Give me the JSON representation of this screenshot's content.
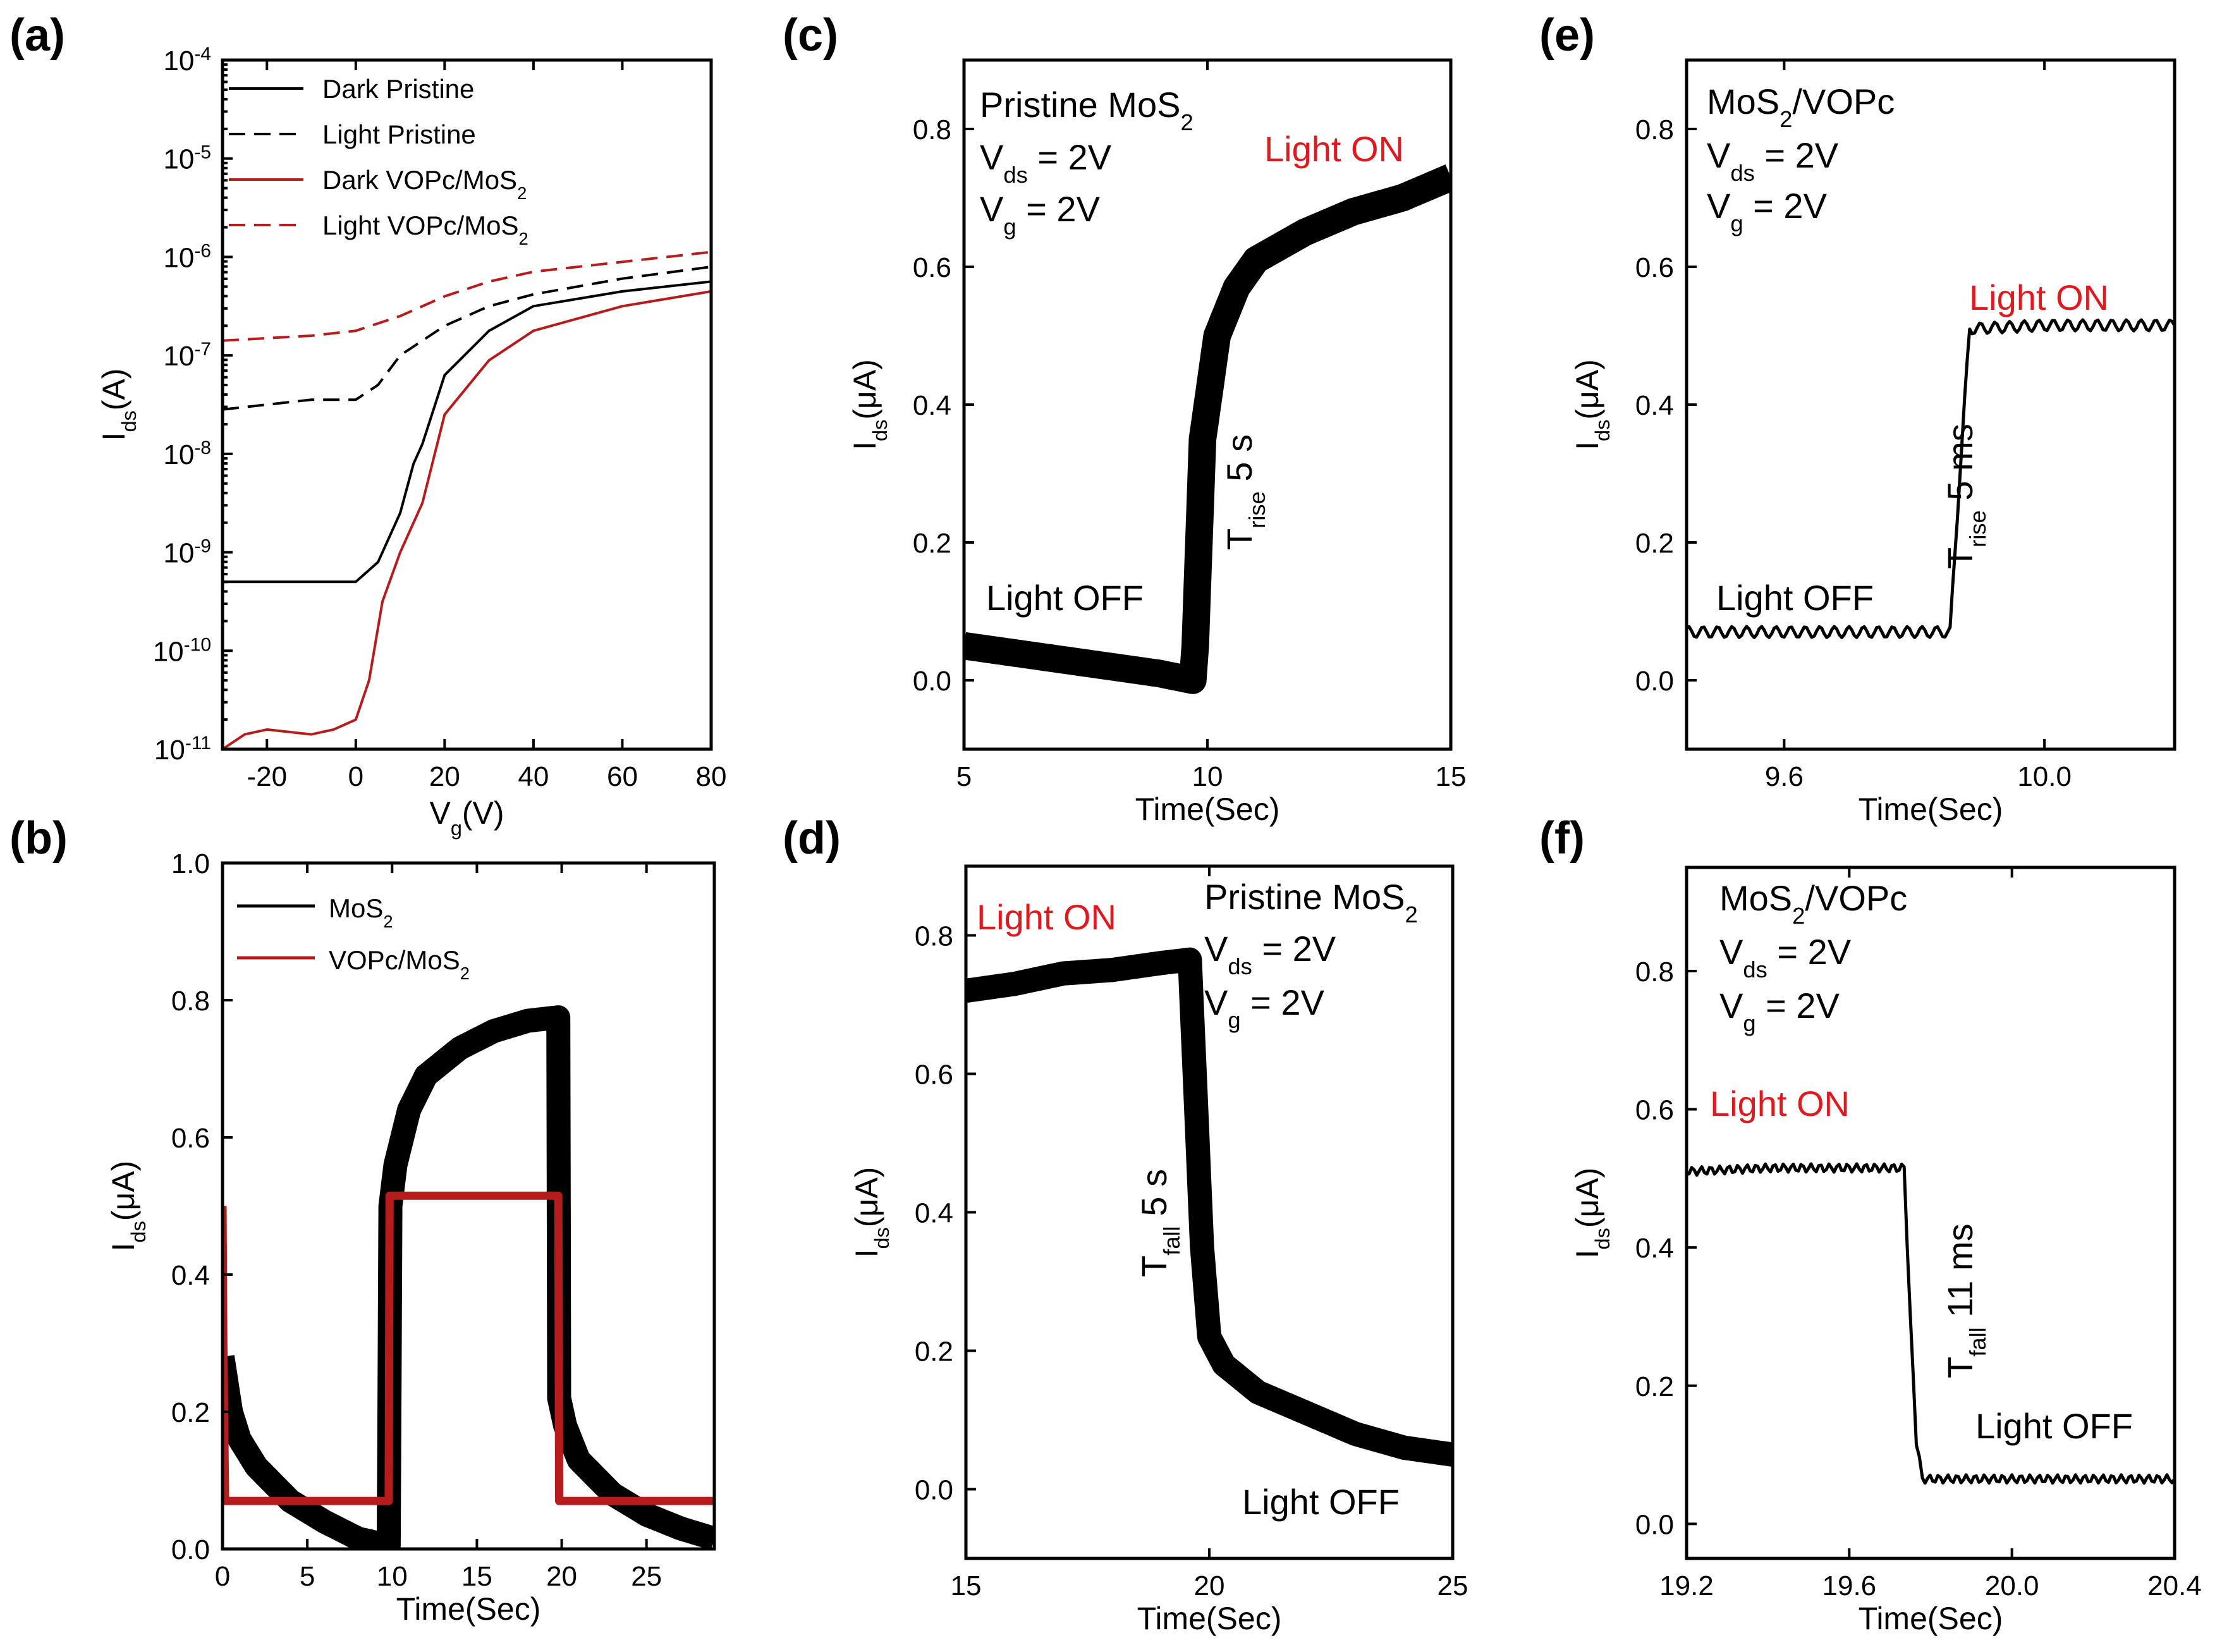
{
  "colors": {
    "black": "#000000",
    "red": "#b71c1c",
    "annot_red": "#e0191e"
  },
  "chart_data": [
    {
      "panel": "(a)",
      "type": "line",
      "xlabel": "Vg(V)",
      "xlabel_main": "V",
      "xlabel_sub": "g",
      "xlabel_tail": "(V)",
      "ylabel": "Ids(A)",
      "ylabel_main": "I",
      "ylabel_sub": "ds",
      "ylabel_tail": "(A)",
      "yscale": "log",
      "xlim": [
        -30,
        80
      ],
      "ylim_exp": [
        -11,
        -4
      ],
      "xticks": [
        -20,
        0,
        20,
        40,
        60,
        80
      ],
      "xtick_labels": [
        "-20",
        "0",
        "20",
        "40",
        "60",
        "80"
      ],
      "yticks_exp": [
        -11,
        -10,
        -9,
        -8,
        -7,
        -6,
        -5,
        -4
      ],
      "ytick_base": "10",
      "ytick_exponents": [
        "-11",
        "-10",
        "-9",
        "-8",
        "-7",
        "-6",
        "-5",
        "-4"
      ],
      "series": [
        {
          "name": "Dark Pristine",
          "legend": [
            "Dark Pristine",
            "",
            ""
          ],
          "color": "#000000",
          "dash": "solid",
          "x": [
            -30,
            -20,
            -10,
            0,
            5,
            10,
            13,
            15,
            20,
            30,
            40,
            60,
            80
          ],
          "y_exp": [
            -9.3,
            -9.3,
            -9.3,
            -9.3,
            -9.1,
            -8.6,
            -8.1,
            -7.9,
            -7.2,
            -6.75,
            -6.5,
            -6.35,
            -6.25
          ]
        },
        {
          "name": "Light Pristine",
          "legend": [
            "Light Pristine",
            "",
            ""
          ],
          "color": "#000000",
          "dash": "dashed",
          "x": [
            -30,
            -10,
            0,
            5,
            10,
            20,
            30,
            40,
            60,
            80
          ],
          "y_exp": [
            -7.55,
            -7.45,
            -7.45,
            -7.3,
            -7.0,
            -6.7,
            -6.5,
            -6.38,
            -6.22,
            -6.1
          ]
        },
        {
          "name": "Dark VOPc/MoS2",
          "legend": [
            "Dark VOPc/MoS",
            "2",
            ""
          ],
          "color": "#b71c1c",
          "dash": "solid",
          "x": [
            -30,
            -25,
            -20,
            -10,
            -5,
            0,
            3,
            6,
            10,
            15,
            20,
            30,
            40,
            60,
            80
          ],
          "y_exp": [
            -11.0,
            -10.85,
            -10.8,
            -10.85,
            -10.8,
            -10.7,
            -10.3,
            -9.5,
            -9.0,
            -8.5,
            -7.6,
            -7.05,
            -6.75,
            -6.5,
            -6.35
          ]
        },
        {
          "name": "Light VOPc/MoS2",
          "legend": [
            "Light VOPc/MoS",
            "2",
            ""
          ],
          "color": "#b71c1c",
          "dash": "dashed",
          "x": [
            -30,
            -10,
            0,
            10,
            20,
            30,
            40,
            60,
            80
          ],
          "y_exp": [
            -6.85,
            -6.8,
            -6.75,
            -6.6,
            -6.4,
            -6.25,
            -6.15,
            -6.05,
            -5.95
          ]
        }
      ]
    },
    {
      "panel": "(b)",
      "type": "line",
      "xlabel": "Time(Sec)",
      "ylabel": "Ids(μA)",
      "ylabel_main": "I",
      "ylabel_sub": "ds",
      "ylabel_tail": "(μA)",
      "xlim": [
        0,
        29
      ],
      "ylim": [
        0,
        1.0
      ],
      "xticks": [
        0,
        5,
        10,
        15,
        20,
        25
      ],
      "xtick_labels": [
        "0",
        "5",
        "10",
        "15",
        "20",
        "25"
      ],
      "yticks": [
        0.0,
        0.2,
        0.4,
        0.6,
        0.8,
        1.0
      ],
      "ytick_labels": [
        "0.0",
        "0.2",
        "0.4",
        "0.6",
        "0.8",
        "1.0"
      ],
      "series": [
        {
          "name": "MoS2",
          "legend": [
            "MoS",
            "2",
            ""
          ],
          "color": "#000000",
          "band": 0.035,
          "x": [
            0,
            0.5,
            1,
            2,
            4,
            6,
            8,
            9.8,
            9.9,
            10.2,
            11,
            12,
            14,
            16,
            18,
            19.8,
            19.85,
            20.2,
            21,
            23,
            25,
            27,
            29
          ],
          "y": [
            0.28,
            0.2,
            0.16,
            0.12,
            0.07,
            0.04,
            0.015,
            0.005,
            0.5,
            0.56,
            0.64,
            0.69,
            0.73,
            0.755,
            0.77,
            0.775,
            0.22,
            0.18,
            0.13,
            0.08,
            0.05,
            0.03,
            0.015
          ]
        },
        {
          "name": "VOPc/MoS2",
          "legend": [
            "VOPc/MoS",
            "2",
            ""
          ],
          "color": "#b71c1c",
          "band": 0.012,
          "x": [
            0,
            0.05,
            0.15,
            9.8,
            9.85,
            19.8,
            19.85,
            29
          ],
          "y": [
            0.5,
            0.3,
            0.07,
            0.07,
            0.515,
            0.515,
            0.07,
            0.07
          ]
        }
      ]
    },
    {
      "panel": "(c)",
      "type": "line",
      "xlabel": "Time(Sec)",
      "ylabel": "Ids(μA)",
      "ylabel_main": "I",
      "ylabel_sub": "ds",
      "ylabel_tail": "(μA)",
      "xlim": [
        5,
        15
      ],
      "ylim": [
        -0.1,
        0.9
      ],
      "xticks": [
        5,
        10,
        15
      ],
      "xtick_labels": [
        "5",
        "10",
        "15"
      ],
      "yticks": [
        0.0,
        0.2,
        0.4,
        0.6,
        0.8
      ],
      "ytick_labels": [
        "0.0",
        "0.2",
        "0.4",
        "0.6",
        "0.8"
      ],
      "series": [
        {
          "name": "Pristine MoS2",
          "color": "#000000",
          "band": 0.04,
          "x": [
            5,
            6,
            7,
            8,
            9,
            9.7,
            9.75,
            9.9,
            10.2,
            10.6,
            11,
            11.5,
            12,
            13,
            14,
            15
          ],
          "y": [
            0.05,
            0.04,
            0.03,
            0.02,
            0.01,
            0.0,
            0.05,
            0.35,
            0.5,
            0.57,
            0.61,
            0.63,
            0.65,
            0.68,
            0.7,
            0.73
          ]
        }
      ],
      "annotations": {
        "device": [
          "Pristine MoS",
          "2",
          ""
        ],
        "vds": [
          "V",
          "ds",
          " = 2V"
        ],
        "vg": [
          "V",
          "g",
          "  = 2V"
        ],
        "light_on": "Light ON",
        "light_off": "Light OFF",
        "time_const": [
          "T",
          "rise",
          " 5 s"
        ]
      }
    },
    {
      "panel": "(d)",
      "type": "line",
      "xlabel": "Time(Sec)",
      "ylabel": "Ids(μA)",
      "ylabel_main": "I",
      "ylabel_sub": "ds",
      "ylabel_tail": "(μA)",
      "xlim": [
        15,
        25
      ],
      "ylim": [
        -0.1,
        0.9
      ],
      "xticks": [
        15,
        20,
        25
      ],
      "xtick_labels": [
        "15",
        "20",
        "25"
      ],
      "yticks": [
        0.0,
        0.2,
        0.4,
        0.6,
        0.8
      ],
      "ytick_labels": [
        "0.0",
        "0.2",
        "0.4",
        "0.6",
        "0.8"
      ],
      "series": [
        {
          "name": "Pristine MoS2",
          "color": "#000000",
          "band": 0.035,
          "x": [
            15,
            16,
            17,
            18,
            19,
            19.6,
            19.7,
            19.85,
            20,
            20.3,
            21,
            22,
            23,
            24,
            25
          ],
          "y": [
            0.72,
            0.73,
            0.745,
            0.75,
            0.76,
            0.765,
            0.6,
            0.35,
            0.22,
            0.18,
            0.14,
            0.11,
            0.08,
            0.06,
            0.05
          ]
        }
      ],
      "annotations": {
        "device": [
          "Pristine MoS",
          "2",
          ""
        ],
        "vds": [
          "V",
          "ds",
          " = 2V"
        ],
        "vg": [
          "V",
          "g",
          "  = 2V"
        ],
        "light_on": "Light ON",
        "light_off": "Light OFF",
        "time_const": [
          "T",
          "fall",
          " 5 s"
        ]
      }
    },
    {
      "panel": "(e)",
      "type": "line",
      "xlabel": "Time(Sec)",
      "ylabel": "Ids(μA)",
      "ylabel_main": "I",
      "ylabel_sub": "ds",
      "ylabel_tail": "(μA)",
      "xlim": [
        9.45,
        10.2
      ],
      "ylim": [
        -0.1,
        0.9
      ],
      "xticks": [
        9.6,
        10.0
      ],
      "xtick_labels": [
        "9.6",
        "10.0"
      ],
      "yticks": [
        0.0,
        0.2,
        0.4,
        0.6,
        0.8
      ],
      "ytick_labels": [
        "0.0",
        "0.2",
        "0.4",
        "0.6",
        "0.8"
      ],
      "series": [
        {
          "name": "MoS2/VOPc",
          "color": "#000000",
          "wiggle": 0.008,
          "x": [
            9.45,
            9.6,
            9.75,
            9.855,
            9.87,
            9.885,
            10.0,
            10.2
          ],
          "y": [
            0.07,
            0.07,
            0.07,
            0.07,
            0.3,
            0.51,
            0.515,
            0.515
          ]
        }
      ],
      "annotations": {
        "device": [
          "MoS",
          "2",
          "/VOPc"
        ],
        "vds": [
          "V",
          "ds",
          " = 2V"
        ],
        "vg": [
          "V",
          "g",
          "  = 2V"
        ],
        "light_on": "Light ON",
        "light_off": "Light OFF",
        "time_const": [
          "T",
          "rise",
          " 5 ms"
        ]
      }
    },
    {
      "panel": "(f)",
      "type": "line",
      "xlabel": "Time(Sec)",
      "ylabel": "Ids(μA)",
      "ylabel_main": "I",
      "ylabel_sub": "ds",
      "ylabel_tail": "(μA)",
      "xlim": [
        19.2,
        20.4
      ],
      "ylim": [
        -0.05,
        0.95
      ],
      "xticks": [
        19.2,
        19.6,
        20.0,
        20.4
      ],
      "xtick_labels": [
        "19.2",
        "19.6",
        "20.0",
        "20.4"
      ],
      "yticks": [
        0.0,
        0.2,
        0.4,
        0.6,
        0.8
      ],
      "ytick_labels": [
        "0.0",
        "0.2",
        "0.4",
        "0.6",
        "0.8"
      ],
      "series": [
        {
          "name": "MoS2/VOPc",
          "color": "#000000",
          "wiggle": 0.006,
          "x": [
            19.2,
            19.4,
            19.6,
            19.735,
            19.75,
            19.765,
            19.78,
            19.9,
            20.1,
            20.4
          ],
          "y": [
            0.51,
            0.515,
            0.515,
            0.515,
            0.3,
            0.12,
            0.065,
            0.065,
            0.065,
            0.065
          ]
        }
      ],
      "annotations": {
        "device": [
          "MoS",
          "2",
          "/VOPc"
        ],
        "vds": [
          "V",
          "ds",
          " = 2V"
        ],
        "vg": [
          "V",
          "g",
          "  = 2V"
        ],
        "light_on": "Light ON",
        "light_off": "Light OFF",
        "time_const": [
          "T",
          "fall",
          " 11 ms"
        ]
      }
    }
  ]
}
